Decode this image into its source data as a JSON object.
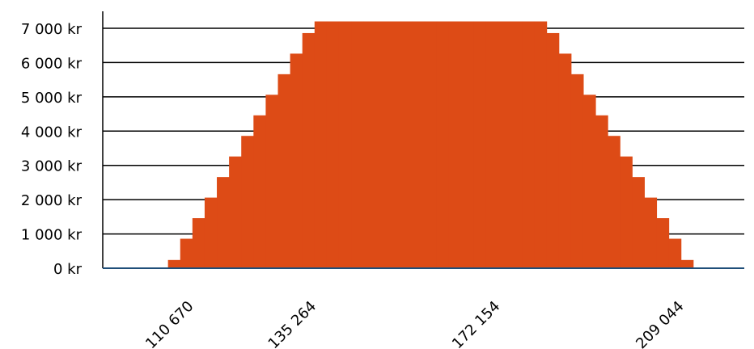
{
  "chart_data": {
    "type": "bar",
    "title": "",
    "xlabel": "",
    "ylabel": "",
    "ylim": [
      0,
      7000
    ],
    "grid": true,
    "bar_color": "#dd4b16",
    "axis_color": "#1f4e79",
    "y_ticks": [
      {
        "value": 0,
        "label": "0 kr"
      },
      {
        "value": 1000,
        "label": "1 000 kr"
      },
      {
        "value": 2000,
        "label": "2 000 kr"
      },
      {
        "value": 3000,
        "label": "3 000 kr"
      },
      {
        "value": 4000,
        "label": "4 000 kr"
      },
      {
        "value": 5000,
        "label": "5 000 kr"
      },
      {
        "value": 6000,
        "label": "6 000 kr"
      },
      {
        "value": 7000,
        "label": "7 000 kr"
      }
    ],
    "x_ticks": [
      {
        "value": 110670,
        "label": "110 670"
      },
      {
        "value": 135264,
        "label": "135 264"
      },
      {
        "value": 172154,
        "label": "172 154"
      },
      {
        "value": 209044,
        "label": "209 044"
      }
    ],
    "xlim": [
      94274,
      222981
    ],
    "x": [
      98789,
      101239,
      103689,
      106139,
      108589,
      111039,
      113489,
      115939,
      118389,
      120839,
      123289,
      125739,
      128189,
      130639,
      133089,
      135539,
      137989,
      140439,
      142889,
      145339,
      147789,
      150239,
      152689,
      155139,
      157589,
      160039,
      162489,
      164939,
      167389,
      169839,
      172289,
      174739,
      177189,
      179639,
      182089,
      184539,
      186989,
      189439,
      191889,
      194339,
      196789,
      199239,
      201689,
      204139,
      206589,
      209039,
      211489,
      213939,
      216389,
      218839,
      221289
    ],
    "values": [
      0,
      0,
      0,
      0,
      240,
      860,
      1460,
      2060,
      2660,
      3260,
      3860,
      4460,
      5060,
      5660,
      6260,
      6860,
      7200,
      7200,
      7200,
      7200,
      7200,
      7200,
      7200,
      7200,
      7200,
      7200,
      7200,
      7200,
      7200,
      7200,
      7200,
      7200,
      7200,
      7200,
      7200,
      6860,
      6260,
      5660,
      5060,
      4460,
      3860,
      3260,
      2660,
      2060,
      1460,
      860,
      240,
      0,
      0,
      0,
      0
    ]
  }
}
